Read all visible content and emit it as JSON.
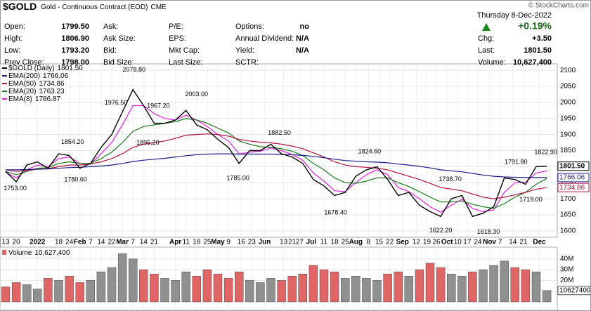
{
  "header": {
    "symbol": "$GOLD",
    "name": "Gold - Continuous Contract (EOD)",
    "exchange": "CME",
    "date": "Thursday 8-Dec-2022",
    "change_pct": "+0.19%",
    "brand": "© StockCharts.com",
    "columns": [
      [
        {
          "label": "Open:",
          "value": "1799.50"
        },
        {
          "label": "High:",
          "value": "1806.90"
        },
        {
          "label": "Low:",
          "value": "1793.20"
        },
        {
          "label": "Prev Close:",
          "value": "1798.00"
        }
      ],
      [
        {
          "label": "Ask:"
        },
        {
          "label": "Ask Size:"
        },
        {
          "label": "Bid:"
        },
        {
          "label": "Bid Size:"
        }
      ],
      [
        {
          "label": "P/E:"
        },
        {
          "label": "EPS:"
        },
        {
          "label": "Mkt Cap:"
        },
        {
          "label": "Last Size:"
        }
      ],
      [
        {
          "label": "Options:",
          "value": "no"
        },
        {
          "label": "Annual Dividend:",
          "value": "N/A"
        },
        {
          "label": "Yield:",
          "value": "N/A"
        },
        {
          "label": "SCTR:"
        }
      ]
    ],
    "right_fields": [
      {
        "label": "Chg:",
        "value": "+3.50"
      },
      {
        "label": "Last:",
        "value": "1801.50"
      },
      {
        "label": "Volume:",
        "value": "10,627,400"
      }
    ]
  },
  "chart_data": [
    {
      "type": "line",
      "x": [
        0,
        1,
        2,
        3,
        4,
        5,
        6,
        7,
        8,
        9,
        10,
        11,
        12,
        13,
        14,
        15,
        16,
        17,
        18,
        19,
        20,
        21,
        22,
        23,
        24,
        25,
        26,
        27,
        28,
        29,
        30,
        31,
        32,
        33,
        34,
        35,
        36,
        37,
        38,
        39,
        40,
        41,
        42,
        43,
        44,
        45,
        46,
        47,
        48,
        49,
        50,
        51
      ],
      "series": [
        {
          "name": "$GOLD (Daily)",
          "color": "#000000",
          "last_label": "1801.50",
          "values": [
            1785,
            1753,
            1805,
            1815,
            1795,
            1840,
            1835,
            1795,
            1810,
            1860,
            1900,
            1970,
            2040,
            1990,
            1935,
            1935,
            1945,
            1975,
            1930,
            1915,
            1885,
            1860,
            1810,
            1850,
            1850,
            1870,
            1840,
            1830,
            1810,
            1760,
            1740,
            1710,
            1720,
            1770,
            1790,
            1800,
            1760,
            1710,
            1720,
            1680,
            1660,
            1645,
            1700,
            1710,
            1645,
            1655,
            1675,
            1765,
            1760,
            1745,
            1800,
            1801.5
          ]
        },
        {
          "name": "EMA(200)",
          "color": "#1c1c8c",
          "last_label": "1766.06",
          "values": [
            1790,
            1790,
            1791,
            1792,
            1793,
            1795,
            1797,
            1798,
            1800,
            1802,
            1805,
            1810,
            1816,
            1820,
            1823,
            1826,
            1830,
            1834,
            1837,
            1839,
            1840,
            1840,
            1839,
            1839,
            1839,
            1839,
            1838,
            1837,
            1835,
            1832,
            1828,
            1823,
            1819,
            1817,
            1815,
            1814,
            1812,
            1808,
            1805,
            1801,
            1796,
            1790,
            1787,
            1784,
            1779,
            1774,
            1770,
            1768,
            1767,
            1766,
            1766,
            1766.06
          ]
        },
        {
          "name": "EMA(50)",
          "color": "#b3103c",
          "last_label": "1734.86",
          "values": [
            1790,
            1785,
            1788,
            1792,
            1794,
            1800,
            1805,
            1805,
            1808,
            1815,
            1825,
            1840,
            1860,
            1870,
            1875,
            1880,
            1888,
            1898,
            1900,
            1902,
            1900,
            1895,
            1885,
            1880,
            1876,
            1874,
            1870,
            1864,
            1856,
            1843,
            1830,
            1815,
            1805,
            1800,
            1798,
            1795,
            1790,
            1780,
            1770,
            1760,
            1748,
            1735,
            1730,
            1725,
            1715,
            1705,
            1700,
            1705,
            1712,
            1720,
            1730,
            1734.86
          ]
        },
        {
          "name": "EMA(20)",
          "color": "#1a7a1a",
          "last_label": "1763.23",
          "values": [
            1785,
            1775,
            1785,
            1795,
            1797,
            1810,
            1815,
            1810,
            1810,
            1825,
            1845,
            1875,
            1910,
            1925,
            1930,
            1935,
            1940,
            1950,
            1945,
            1935,
            1920,
            1905,
            1880,
            1870,
            1862,
            1860,
            1856,
            1848,
            1835,
            1810,
            1790,
            1765,
            1750,
            1748,
            1755,
            1765,
            1765,
            1750,
            1738,
            1722,
            1705,
            1690,
            1690,
            1693,
            1683,
            1675,
            1670,
            1685,
            1705,
            1720,
            1745,
            1763.23
          ]
        },
        {
          "name": "EMA(8)",
          "color": "#e020e0",
          "last_label": "1786.87",
          "values": [
            1783,
            1765,
            1790,
            1805,
            1800,
            1825,
            1830,
            1810,
            1808,
            1840,
            1875,
            1930,
            1990,
            1990,
            1965,
            1950,
            1945,
            1960,
            1945,
            1925,
            1900,
            1880,
            1840,
            1845,
            1848,
            1858,
            1850,
            1838,
            1820,
            1780,
            1755,
            1725,
            1722,
            1750,
            1775,
            1790,
            1775,
            1735,
            1722,
            1700,
            1675,
            1658,
            1680,
            1698,
            1670,
            1660,
            1665,
            1720,
            1750,
            1752,
            1780,
            1786.87
          ]
        }
      ],
      "xlim": [
        -0.5,
        52
      ],
      "xticks": [
        {
          "value": 0,
          "label": "13"
        },
        {
          "value": 1,
          "label": "20"
        },
        {
          "value": 3,
          "label": "2022"
        },
        {
          "value": 5,
          "label": "18"
        },
        {
          "value": 6,
          "label": "24"
        },
        {
          "value": 7,
          "label": "Feb"
        },
        {
          "value": 8,
          "label": "7"
        },
        {
          "value": 9,
          "label": "14"
        },
        {
          "value": 10,
          "label": "22"
        },
        {
          "value": 11,
          "label": "Mar"
        },
        {
          "value": 12,
          "label": "7"
        },
        {
          "value": 13,
          "label": "14"
        },
        {
          "value": 14,
          "label": "21"
        },
        {
          "value": 16,
          "label": "Apr"
        },
        {
          "value": 17,
          "label": "11"
        },
        {
          "value": 18,
          "label": "18"
        },
        {
          "value": 19,
          "label": "25"
        },
        {
          "value": 20,
          "label": "May"
        },
        {
          "value": 21,
          "label": "9"
        },
        {
          "value": 22.2,
          "label": "16"
        },
        {
          "value": 23.2,
          "label": "23"
        },
        {
          "value": 24.4,
          "label": "Jun"
        },
        {
          "value": 26.2,
          "label": "13"
        },
        {
          "value": 27,
          "label": "21"
        },
        {
          "value": 27.7,
          "label": "27"
        },
        {
          "value": 28.8,
          "label": "Jul"
        },
        {
          "value": 30,
          "label": "11"
        },
        {
          "value": 31,
          "label": "18"
        },
        {
          "value": 32,
          "label": "25"
        },
        {
          "value": 33,
          "label": "Aug"
        },
        {
          "value": 34.2,
          "label": "8"
        },
        {
          "value": 35.2,
          "label": "15"
        },
        {
          "value": 36.2,
          "label": "22"
        },
        {
          "value": 37.4,
          "label": "Sep"
        },
        {
          "value": 38.7,
          "label": "12"
        },
        {
          "value": 39.7,
          "label": "19"
        },
        {
          "value": 40.6,
          "label": "26"
        },
        {
          "value": 41.6,
          "label": "Oct"
        },
        {
          "value": 42.6,
          "label": "10"
        },
        {
          "value": 43.5,
          "label": "17"
        },
        {
          "value": 44.5,
          "label": "24"
        },
        {
          "value": 45.6,
          "label": "Nov"
        },
        {
          "value": 46.6,
          "label": "7"
        },
        {
          "value": 47.8,
          "label": "14"
        },
        {
          "value": 48.8,
          "label": "21"
        },
        {
          "value": 50.3,
          "label": "Dec"
        }
      ],
      "ylim": [
        1580,
        2120
      ],
      "yticks": [
        1600,
        1650,
        1700,
        1750,
        1800,
        1850,
        1900,
        1950,
        2000,
        2050,
        2100
      ],
      "grid": true,
      "annotations": [
        {
          "x": 0.9,
          "value": 1753.0,
          "label": "1753.00",
          "position": "below"
        },
        {
          "x": 6.3,
          "value": 1854.2,
          "label": "1854.20",
          "position": "above"
        },
        {
          "x": 6.6,
          "value": 1780.6,
          "label": "1780.60",
          "position": "below"
        },
        {
          "x": 10.4,
          "value": 1976.5,
          "label": "1976.50",
          "position": "above"
        },
        {
          "x": 12.1,
          "value": 2078.8,
          "label": "2078.80",
          "position": "above"
        },
        {
          "x": 13.4,
          "value": 1895.2,
          "label": "1895.20",
          "position": "below"
        },
        {
          "x": 14.4,
          "value": 1967.2,
          "label": "1967.20",
          "position": "above"
        },
        {
          "x": 18,
          "value": 2003.0,
          "label": "2003.00",
          "position": "above"
        },
        {
          "x": 21.9,
          "value": 1785.0,
          "label": "1785.00",
          "position": "below"
        },
        {
          "x": 25.8,
          "value": 1882.5,
          "label": "1882.50",
          "position": "above"
        },
        {
          "x": 31.1,
          "value": 1678.4,
          "label": "1678.40",
          "position": "below"
        },
        {
          "x": 34.3,
          "value": 1824.6,
          "label": "1824.60",
          "position": "above"
        },
        {
          "x": 41.9,
          "value": 1738.7,
          "label": "1738.70",
          "position": "above"
        },
        {
          "x": 41,
          "value": 1622.2,
          "label": "1622.20",
          "position": "below"
        },
        {
          "x": 45.5,
          "value": 1618.3,
          "label": "1618.30",
          "position": "below"
        },
        {
          "x": 48.1,
          "value": 1791.8,
          "label": "1791.80",
          "position": "above"
        },
        {
          "x": 49.5,
          "value": 1719.0,
          "label": "1719.00",
          "position": "below"
        },
        {
          "x": 50.9,
          "value": 1822.9,
          "label": "1822.90",
          "position": "above"
        }
      ]
    },
    {
      "type": "bar",
      "x": [
        0,
        1,
        2,
        3,
        4,
        5,
        6,
        7,
        8,
        9,
        10,
        11,
        12,
        13,
        14,
        15,
        16,
        17,
        18,
        19,
        20,
        21,
        22,
        23,
        24,
        25,
        26,
        27,
        28,
        29,
        30,
        31,
        32,
        33,
        34,
        35,
        36,
        37,
        38,
        39,
        40,
        41,
        42,
        43,
        44,
        45,
        46,
        47,
        48,
        49,
        50,
        51
      ],
      "series": [
        {
          "name": "Volume",
          "color": "#e06666",
          "up_color": "#909090",
          "value_label": "10,627,400",
          "last_label": "10627400",
          "values": [
            14000000,
            18000000,
            16000000,
            12000000,
            22000000,
            20000000,
            24000000,
            18000000,
            20000000,
            28000000,
            32000000,
            45000000,
            40000000,
            30000000,
            26000000,
            22000000,
            20000000,
            28000000,
            24000000,
            30000000,
            26000000,
            22000000,
            28000000,
            20000000,
            18000000,
            22000000,
            20000000,
            24000000,
            26000000,
            34000000,
            30000000,
            28000000,
            22000000,
            24000000,
            22000000,
            20000000,
            26000000,
            28000000,
            24000000,
            30000000,
            36000000,
            32000000,
            26000000,
            24000000,
            28000000,
            30000000,
            34000000,
            38000000,
            32000000,
            30000000,
            28000000,
            10627400
          ]
        }
      ],
      "ylim": [
        0,
        50000000
      ],
      "yticks": [
        {
          "value": 10000000,
          "label": "10M"
        },
        {
          "value": 20000000,
          "label": "20M"
        },
        {
          "value": 30000000,
          "label": "30M"
        },
        {
          "value": 40000000,
          "label": "40M"
        }
      ],
      "grid": true
    }
  ]
}
